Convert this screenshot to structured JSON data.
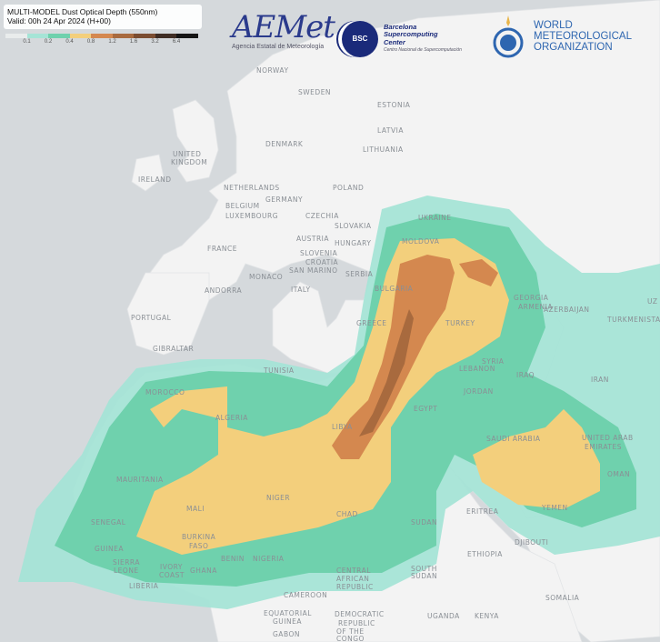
{
  "title": "MULTI-MODEL Dust Optical Depth (550nm)",
  "valid": "Valid: 00h 24 Apr 2024 (H+00)",
  "legend": {
    "ticks": [
      "0.1",
      "0.2",
      "0.4",
      "0.8",
      "1.2",
      "1.6",
      "3.2",
      "6.4"
    ],
    "colors": [
      "#e9ecec",
      "#a5e4d6",
      "#6fd1ad",
      "#f3cf7c",
      "#d4884f",
      "#a86a3e",
      "#7b4d31",
      "#3f2d24",
      "#151515"
    ]
  },
  "logos": {
    "aemet": {
      "mark": "AEMet",
      "text": "Agencia Estatal de Meteorología"
    },
    "bsc": {
      "mark": "BSC",
      "line1": "Barcelona",
      "line2": "Supercomputing",
      "line3": "Center",
      "sub": "Centro Nacional de Supercomputación"
    },
    "wmo": {
      "line1": "WORLD",
      "line2": "METEOROLOGICAL",
      "line3": "ORGANIZATION"
    }
  },
  "labels": {
    "norway": "NORWAY",
    "sweden": "SWEDEN",
    "estonia": "ESTONIA",
    "latvia": "LATVIA",
    "lithuania": "LITHUANIA",
    "denmark": "DENMARK",
    "uk": "UNITED KINGDOM",
    "ireland": "IRELAND",
    "netherlands": "NETHERLANDS",
    "belgium": "BELGIUM",
    "luxembourg": "LUXEMBOURG",
    "germany": "GERMANY",
    "poland": "POLAND",
    "czechia": "CZECHIA",
    "slovakia": "SLOVAKIA",
    "ukraine": "UKRAINE",
    "moldova": "MOLDOVA",
    "austria": "AUSTRIA",
    "hungary": "HUNGARY",
    "slovenia": "SLOVENIA",
    "croatia": "CROATIA",
    "france": "FRANCE",
    "monaco": "MONACO",
    "sanmarino": "SAN MARINO",
    "serbia": "SERBIA",
    "bulgaria": "BULGARIA",
    "andorra": "ANDORRA",
    "italy": "ITALY",
    "portugal": "PORTUGAL",
    "greece": "GREECE",
    "turkey": "TURKEY",
    "georgia": "GEORGIA",
    "armenia": "ARMENIA",
    "azerbaijan": "AZERBAIJAN",
    "turkmenistan": "TURKMENISTA",
    "uz": "UZ",
    "gibraltar": "GIBRALTAR",
    "tunisia": "TUNISIA",
    "morocco": "MOROCCO",
    "algeria": "ALGERIA",
    "libya": "LIBYA",
    "egypt": "EGYPT",
    "lebanon": "LEBANON",
    "syria": "SYRIA",
    "iraq": "IRAQ",
    "iran": "IRAN",
    "jordan": "JORDAN",
    "saudi": "SAUDI ARABIA",
    "uae1": "UNITED ARAB",
    "uae2": "EMIRATES",
    "oman": "OMAN",
    "yemen": "YEMEN",
    "mauritania": "MAURITANIA",
    "mali": "MALI",
    "niger": "NIGER",
    "chad": "CHAD",
    "sudan": "SUDAN",
    "eritrea": "ERITREA",
    "djibouti": "DJIBOUTI",
    "ethiopia": "ETHIOPIA",
    "senegal": "SENEGAL",
    "guinea": "GUINEA",
    "burkina1": "BURKINA",
    "burkina2": "FASO",
    "nigeria": "NIGERIA",
    "benin": "BENIN",
    "ghana": "GHANA",
    "ivory1": "IVORY",
    "ivory2": "COAST",
    "sierra1": "SIERRA",
    "sierra2": "LEONE",
    "liberia": "LIBERIA",
    "car1": "CENTRAL",
    "car2": "AFRICAN",
    "car3": "REPUBLIC",
    "ssudan1": "SOUTH",
    "ssudan2": "SUDAN",
    "cameroon": "CAMEROON",
    "eqg1": "EQUATORIAL",
    "eqg2": "GUINEA",
    "uganda": "UGANDA",
    "kenya": "KENYA",
    "drc1": "DEMOCRATIC",
    "drc2": "REPUBLIC",
    "drc3": "OF THE",
    "drc4": "CONGO",
    "somalia": "SOMALIA",
    "gabon": "GABON"
  }
}
